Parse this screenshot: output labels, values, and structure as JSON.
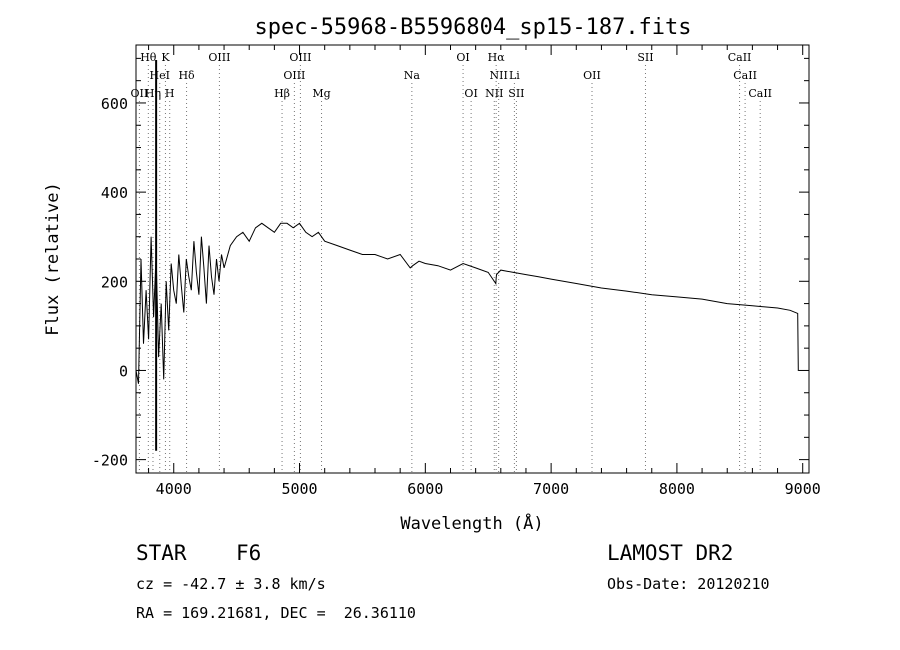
{
  "chart_data": {
    "type": "line",
    "title": "spec-55968-B5596804_sp15-187.fits",
    "xlabel": "Wavelength (Å)",
    "ylabel": "Flux (relative)",
    "xlim": [
      3700,
      9050
    ],
    "ylim": [
      -230,
      730
    ],
    "xticks": [
      4000,
      5000,
      6000,
      7000,
      8000,
      9000
    ],
    "yticks": [
      -200,
      0,
      200,
      400,
      600
    ],
    "grid": false,
    "series": [
      {
        "values_x": [
          3700,
          3720,
          3740,
          3760,
          3780,
          3800,
          3820,
          3840,
          3860,
          3880,
          3900,
          3920,
          3940,
          3960,
          3980,
          4000,
          4020,
          4040,
          4060,
          4080,
          4100,
          4120,
          4140,
          4160,
          4180,
          4200,
          4220,
          4240,
          4260,
          4280,
          4300,
          4320,
          4340,
          4360,
          4380,
          4400,
          4450,
          4500,
          4550,
          4600,
          4650,
          4700,
          4750,
          4800,
          4850,
          4900,
          4950,
          5000,
          5050,
          5100,
          5150,
          5200,
          5300,
          5400,
          5500,
          5600,
          5700,
          5800,
          5880,
          5900,
          5950,
          6000,
          6100,
          6200,
          6300,
          6400,
          6500,
          6560,
          6563,
          6566,
          6600,
          6700,
          6800,
          6900,
          7000,
          7200,
          7400,
          7600,
          7800,
          8000,
          8200,
          8400,
          8600,
          8800,
          8900,
          8960,
          8965,
          8970
        ],
        "values_y": [
          0,
          -30,
          250,
          60,
          180,
          70,
          300,
          120,
          260,
          30,
          150,
          -20,
          200,
          90,
          240,
          180,
          150,
          260,
          190,
          130,
          250,
          210,
          180,
          290,
          220,
          170,
          300,
          230,
          150,
          280,
          210,
          170,
          250,
          200,
          260,
          230,
          280,
          300,
          310,
          290,
          320,
          330,
          320,
          310,
          330,
          330,
          320,
          330,
          310,
          300,
          310,
          290,
          280,
          270,
          260,
          260,
          250,
          260,
          230,
          235,
          245,
          240,
          235,
          225,
          240,
          230,
          220,
          195,
          205,
          215,
          225,
          220,
          215,
          210,
          205,
          195,
          185,
          178,
          170,
          165,
          160,
          150,
          145,
          140,
          135,
          128,
          0,
          0
        ]
      }
    ],
    "line_annotations": [
      {
        "label": "Hθ",
        "x": 3798,
        "row": 0
      },
      {
        "label": "K",
        "x": 3934,
        "row": 0
      },
      {
        "label": "HeI",
        "x": 3889,
        "row": 1
      },
      {
        "label": "Hδ",
        "x": 4102,
        "row": 1
      },
      {
        "label": "OII",
        "x": 3727,
        "row": 2
      },
      {
        "label": "Hη",
        "x": 3835,
        "row": 2
      },
      {
        "label": "H",
        "x": 3968,
        "row": 2
      },
      {
        "label": "OIII",
        "x": 4363,
        "row": 0
      },
      {
        "label": "OIII",
        "x": 5007,
        "row": 0
      },
      {
        "label": "OIII",
        "x": 4959,
        "row": 1
      },
      {
        "label": "Hβ",
        "x": 4861,
        "row": 2
      },
      {
        "label": "Mg",
        "x": 5175,
        "row": 2
      },
      {
        "label": "Na",
        "x": 5893,
        "row": 1
      },
      {
        "label": "OI",
        "x": 6300,
        "row": 0
      },
      {
        "label": "OI",
        "x": 6364,
        "row": 2
      },
      {
        "label": "Hα",
        "x": 6563,
        "row": 0
      },
      {
        "label": "NII",
        "x": 6583,
        "row": 1
      },
      {
        "label": "Li",
        "x": 6708,
        "row": 1
      },
      {
        "label": "NII",
        "x": 6548,
        "row": 2
      },
      {
        "label": "SII",
        "x": 6724,
        "row": 2
      },
      {
        "label": "OII",
        "x": 7325,
        "row": 1
      },
      {
        "label": "SII",
        "x": 7750,
        "row": 0
      },
      {
        "label": "CaII",
        "x": 8498,
        "row": 0
      },
      {
        "label": "CaII",
        "x": 8542,
        "row": 1
      },
      {
        "label": "CaII",
        "x": 8662,
        "row": 2
      }
    ],
    "vertical_marker_x": 3860
  },
  "info": {
    "object_class": "STAR",
    "subclass": "F6",
    "survey": "LAMOST DR2",
    "redshift": "cz = -42.7 ± 3.8 km/s",
    "obs_date": "Obs-Date: 20120210",
    "coords": "RA = 169.21681, DEC =  26.36110"
  }
}
